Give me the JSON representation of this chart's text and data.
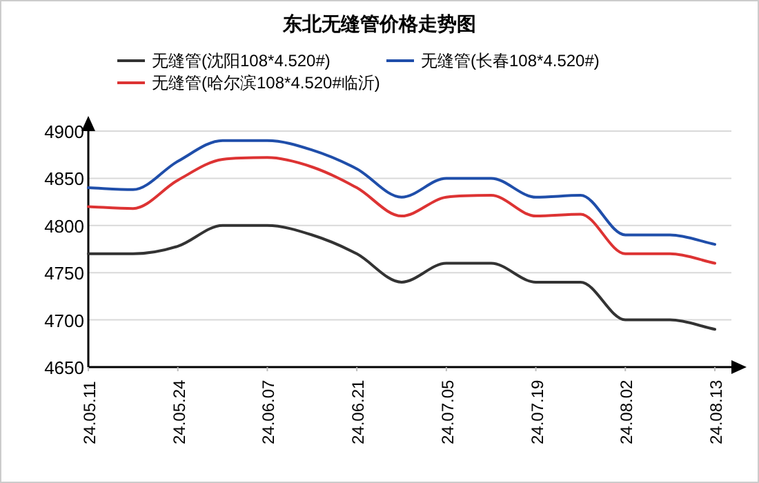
{
  "chart_data": {
    "type": "line",
    "title": "东北无缝管价格走势图",
    "categories": [
      "24.05.11",
      null,
      "24.05.24",
      null,
      "24.06.07",
      null,
      "24.06.21",
      null,
      "24.07.05",
      null,
      "24.07.19",
      null,
      "24.08.02",
      null,
      "24.08.13"
    ],
    "series": [
      {
        "name": "无缝管(沈阳108*4.520#)",
        "color": "#333333",
        "values": [
          4770,
          4770,
          4778,
          4800,
          4800,
          4790,
          4770,
          4740,
          4760,
          4760,
          4740,
          4740,
          4700,
          4700,
          4690
        ]
      },
      {
        "name": "无缝管(长春108*4.520#)",
        "color": "#1f4eaa",
        "values": [
          4840,
          4838,
          4868,
          4890,
          4890,
          4880,
          4860,
          4830,
          4850,
          4850,
          4830,
          4832,
          4790,
          4790,
          4780
        ]
      },
      {
        "name": "无缝管(哈尔滨108*4.520#临沂)",
        "color": "#dd3333",
        "values": [
          4820,
          4818,
          4848,
          4870,
          4872,
          4862,
          4840,
          4810,
          4830,
          4832,
          4810,
          4812,
          4770,
          4770,
          4760
        ]
      }
    ],
    "ylim": [
      4650,
      4900
    ],
    "yticks": [
      4650,
      4700,
      4750,
      4800,
      4850,
      4900
    ],
    "grid": "y",
    "legend": "top",
    "marker": "none",
    "line_style": "solid"
  }
}
